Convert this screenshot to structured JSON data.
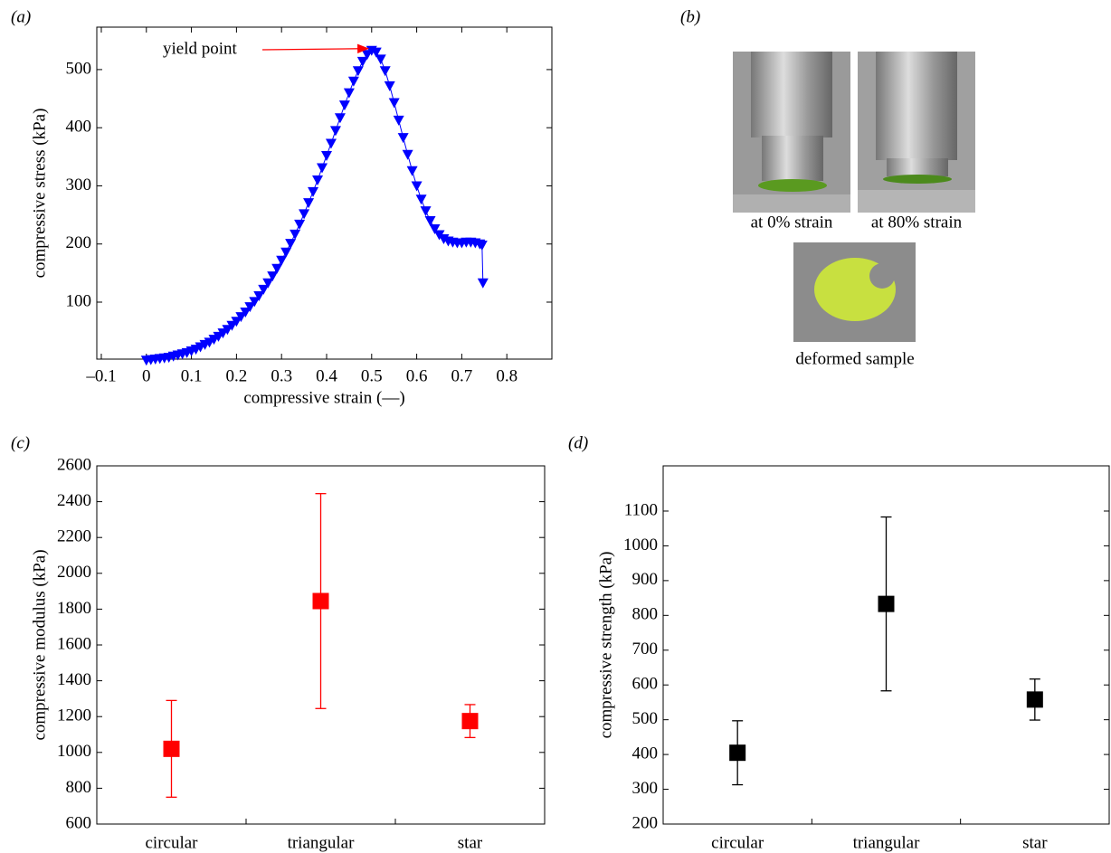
{
  "chart_data": [
    {
      "type": "scatter",
      "label": "(a)",
      "xlabel": "compressive strain (—)",
      "ylabel": "compressive stress (kPa)",
      "annotation": "yield point",
      "annotation_color": "#ff0000",
      "color": "#0000ff",
      "x": [
        0,
        0.01,
        0.02,
        0.03,
        0.04,
        0.05,
        0.06,
        0.07,
        0.08,
        0.09,
        0.1,
        0.11,
        0.12,
        0.13,
        0.14,
        0.15,
        0.16,
        0.17,
        0.18,
        0.19,
        0.2,
        0.21,
        0.22,
        0.23,
        0.24,
        0.25,
        0.26,
        0.27,
        0.28,
        0.29,
        0.3,
        0.31,
        0.32,
        0.33,
        0.34,
        0.35,
        0.36,
        0.37,
        0.38,
        0.39,
        0.4,
        0.41,
        0.42,
        0.43,
        0.44,
        0.45,
        0.46,
        0.47,
        0.48,
        0.49,
        0.5,
        0.51,
        0.52,
        0.53,
        0.54,
        0.55,
        0.56,
        0.57,
        0.58,
        0.59,
        0.6,
        0.61,
        0.62,
        0.63,
        0.64,
        0.65,
        0.66,
        0.67,
        0.68,
        0.69,
        0.7,
        0.71,
        0.72,
        0.73,
        0.74,
        0.745,
        0.747
      ],
      "values": [
        0,
        1,
        2,
        3,
        4,
        5,
        7,
        9,
        11,
        13,
        16,
        19,
        23,
        27,
        31,
        36,
        41,
        47,
        53,
        60,
        67,
        75,
        83,
        92,
        101,
        111,
        122,
        133,
        145,
        158,
        172,
        186,
        201,
        217,
        234,
        252,
        271,
        290,
        310,
        331,
        352,
        373,
        395,
        417,
        439,
        460,
        480,
        498,
        514,
        526,
        533,
        530,
        518,
        498,
        472,
        443,
        413,
        383,
        354,
        326,
        300,
        277,
        257,
        240,
        226,
        216,
        209,
        205,
        203,
        202,
        202,
        203,
        203,
        202,
        200,
        198,
        133
      ],
      "xlim": [
        -0.11,
        0.9
      ],
      "ylim": [
        2,
        573
      ],
      "xticks": [
        {
          "value": -0.1,
          "label": "–0.1"
        },
        0,
        0.1,
        0.2,
        0.3,
        0.4,
        0.5,
        0.6,
        0.7,
        0.8
      ],
      "yticks": [
        100,
        200,
        300,
        400,
        500
      ]
    },
    {
      "type": "image",
      "label": "(b)",
      "captions": [
        "at 0% strain",
        "at 80% strain",
        "deformed sample"
      ]
    },
    {
      "type": "errorbar",
      "label": "(c)",
      "ylabel": "compressive modulus (kPa)",
      "color": "#ff0000",
      "categories": [
        "circular",
        "triangular",
        "star"
      ],
      "values": [
        1020,
        1845,
        1175
      ],
      "errors": [
        270,
        600,
        92
      ],
      "ylim": [
        600,
        2600
      ],
      "yticks": [
        600,
        800,
        1000,
        1200,
        1400,
        1600,
        1800,
        2000,
        2200,
        2400,
        2600
      ]
    },
    {
      "type": "errorbar",
      "label": "(d)",
      "ylabel": "compressive strength (kPa)",
      "color": "#000000",
      "categories": [
        "circular",
        "triangular",
        "star"
      ],
      "values": [
        405,
        833,
        558
      ],
      "errors": [
        92,
        250,
        59
      ],
      "ylim": [
        200,
        1230
      ],
      "yticks": [
        200,
        300,
        400,
        500,
        600,
        700,
        800,
        900,
        1000,
        1100
      ]
    }
  ]
}
